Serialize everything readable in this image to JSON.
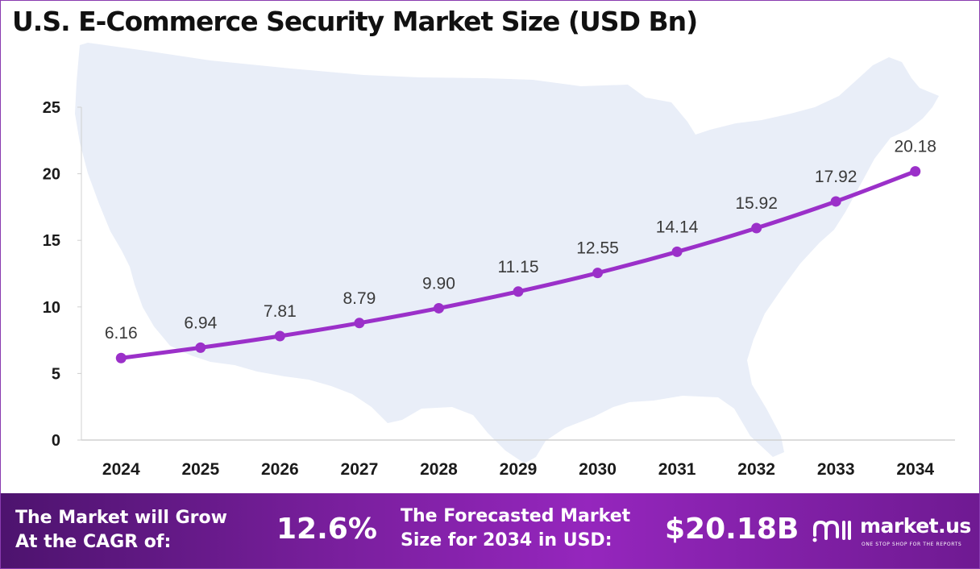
{
  "title": "U.S. E-Commerce Security Market Size (USD Bn)",
  "chart_data": {
    "type": "line",
    "title": "U.S. E-Commerce Security Market Size (USD Bn)",
    "xlabel": "",
    "ylabel": "",
    "categories": [
      "2024",
      "2025",
      "2026",
      "2027",
      "2028",
      "2029",
      "2030",
      "2031",
      "2032",
      "2033",
      "2034"
    ],
    "values": [
      6.16,
      6.94,
      7.81,
      8.79,
      9.9,
      11.15,
      12.55,
      14.14,
      15.92,
      17.92,
      20.18
    ],
    "data_labels": [
      "6.16",
      "6.94",
      "7.81",
      "8.79",
      "9.90",
      "11.15",
      "12.55",
      "14.14",
      "15.92",
      "17.92",
      "20.18"
    ],
    "yticks": [
      "0",
      "5",
      "10",
      "15",
      "20",
      "25"
    ],
    "ylim": [
      0,
      25
    ],
    "grid": false,
    "legend": "none",
    "line_color": "#9b30c9",
    "background_image": "us-map-silhouette"
  },
  "footer": {
    "cagr_line1": "The Market will Grow",
    "cagr_line2": "At the CAGR of:",
    "cagr_value": "12.6%",
    "forecast_line1": "The Forecasted Market",
    "forecast_line2": "Size for 2034 in USD:",
    "forecast_value": "$20.18B",
    "brand_name": "market.us",
    "brand_tagline": "ONE STOP SHOP FOR THE REPORTS"
  },
  "colors": {
    "accent": "#9b30c9",
    "footer_dark": "#4d136e",
    "footer_mid": "#9526bd",
    "map_fill": "#e9eef8"
  }
}
